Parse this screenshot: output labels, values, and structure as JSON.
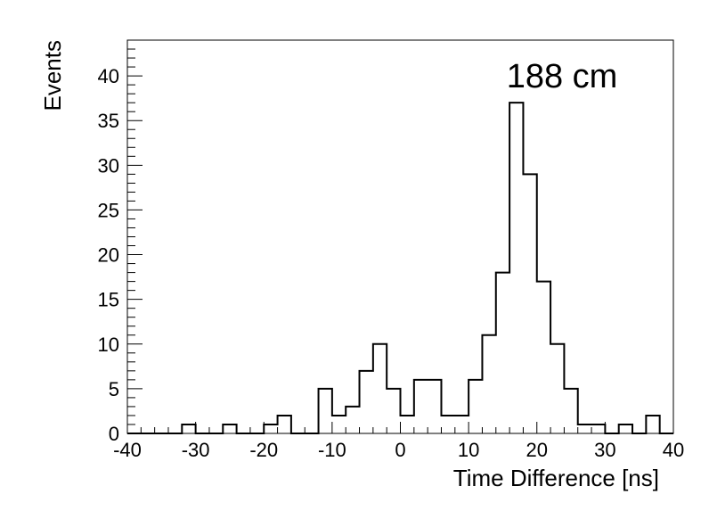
{
  "chart_data": {
    "type": "histogram",
    "annotation": "188 cm",
    "xlabel": "Time Difference [ns]",
    "ylabel": "Events",
    "xlim": [
      -40,
      40
    ],
    "ylim": [
      0,
      44
    ],
    "grid": false,
    "x_ticks": [
      -40,
      -30,
      -20,
      -10,
      0,
      10,
      20,
      30,
      40
    ],
    "y_ticks": [
      0,
      5,
      10,
      15,
      20,
      25,
      30,
      35,
      40
    ],
    "bin_edges": [
      -40,
      -38,
      -36,
      -34,
      -32,
      -30,
      -28,
      -26,
      -24,
      -22,
      -20,
      -18,
      -16,
      -14,
      -12,
      -10,
      -8,
      -6,
      -4,
      -2,
      0,
      2,
      4,
      6,
      8,
      10,
      12,
      14,
      16,
      18,
      20,
      22,
      24,
      26,
      28,
      30,
      32,
      34,
      36,
      38,
      40
    ],
    "values": [
      0,
      0,
      0,
      0,
      1,
      0,
      0,
      1,
      0,
      0,
      1,
      2,
      0,
      0,
      5,
      2,
      3,
      7,
      10,
      5,
      2,
      6,
      6,
      2,
      2,
      6,
      11,
      18,
      37,
      29,
      17,
      10,
      5,
      1,
      1,
      0,
      1,
      0,
      2,
      0
    ]
  }
}
